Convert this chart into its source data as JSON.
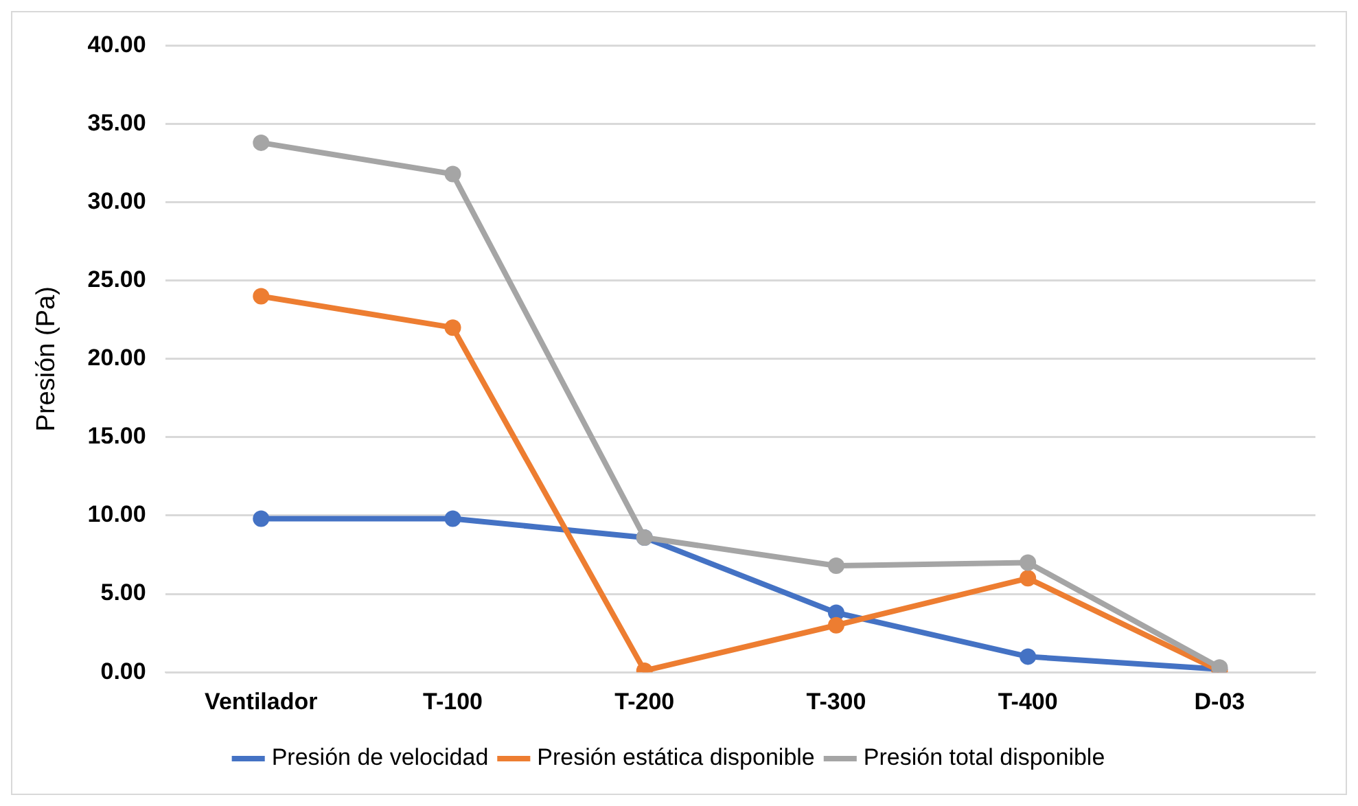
{
  "chart_data": {
    "type": "line",
    "ylabel": "Presión (Pa)",
    "categories": [
      "Ventilador",
      "T-100",
      "T-200",
      "T-300",
      "T-400",
      "D-03"
    ],
    "series": [
      {
        "name": "Presión de velocidad",
        "color": "#4472c4",
        "values": [
          9.8,
          9.8,
          8.6,
          3.8,
          1.0,
          0.2
        ]
      },
      {
        "name": "Presión estática disponible",
        "color": "#ed7d31",
        "values": [
          24.0,
          22.0,
          0.1,
          3.0,
          6.0,
          0.1
        ]
      },
      {
        "name": "Presión total disponible",
        "color": "#a5a5a5",
        "values": [
          33.8,
          31.8,
          8.6,
          6.8,
          7.0,
          0.3
        ]
      }
    ],
    "ylim": [
      0,
      40
    ],
    "yticks": [
      {
        "value": 0,
        "label": "0.00"
      },
      {
        "value": 5,
        "label": "5.00"
      },
      {
        "value": 10,
        "label": "10.00"
      },
      {
        "value": 15,
        "label": "15.00"
      },
      {
        "value": 20,
        "label": "20.00"
      },
      {
        "value": 25,
        "label": "25.00"
      },
      {
        "value": 30,
        "label": "30.00"
      },
      {
        "value": 35,
        "label": "35.00"
      },
      {
        "value": 40,
        "label": "40.00"
      }
    ],
    "grid": "y",
    "legend": "bottom",
    "marker": "circle",
    "line_style": "solid"
  }
}
